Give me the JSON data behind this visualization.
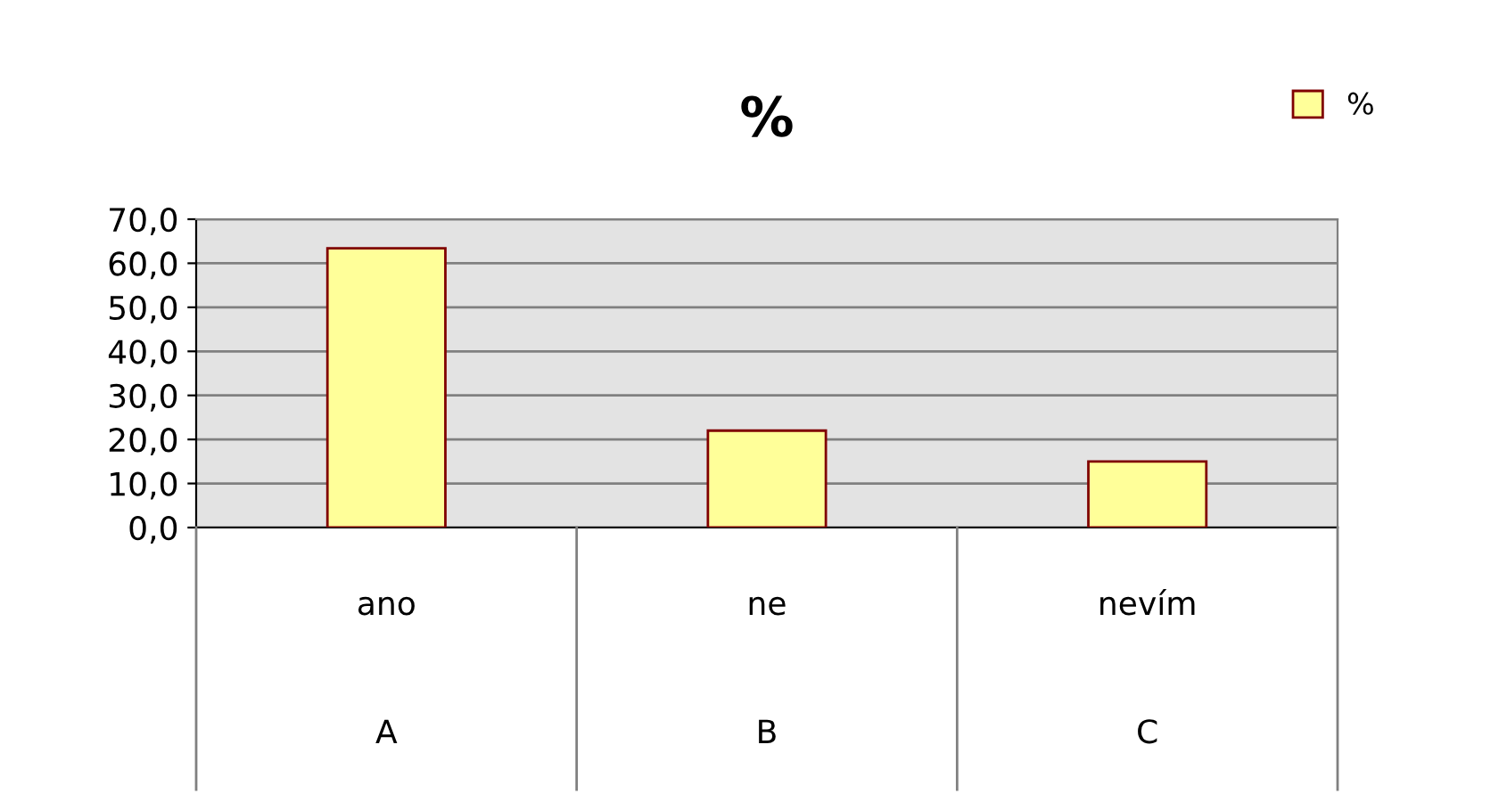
{
  "chart_data": {
    "type": "bar",
    "title": "%",
    "categories": [
      "ano\nA",
      "ne\nB",
      "nevím\nC"
    ],
    "series": [
      {
        "name": "%",
        "color": "#ffff99",
        "values": [
          63.4,
          22.0,
          15.0
        ]
      }
    ],
    "ylim": [
      0,
      70
    ],
    "yticks": [
      {
        "value": 0,
        "label": "0,0"
      },
      {
        "value": 10,
        "label": "10,0"
      },
      {
        "value": 20,
        "label": "20,0"
      },
      {
        "value": 30,
        "label": "30,0"
      },
      {
        "value": 40,
        "label": "40,0"
      },
      {
        "value": 50,
        "label": "50,0"
      },
      {
        "value": 60,
        "label": "60,0"
      },
      {
        "value": 70,
        "label": "70,0"
      }
    ],
    "grid": "y",
    "legend": "top right"
  }
}
